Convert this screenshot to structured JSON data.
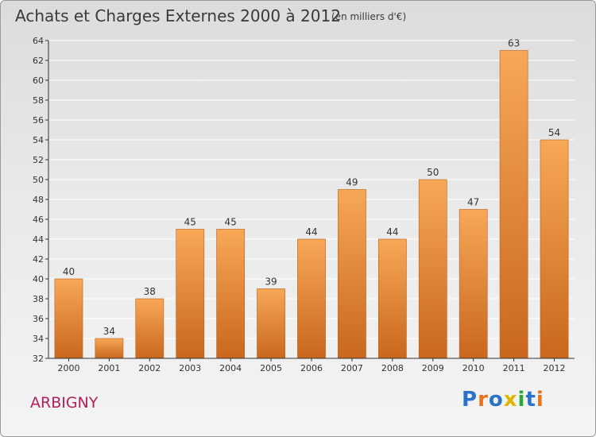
{
  "title": "Achats et Charges Externes 2000 à 2012",
  "unit_note": "(en milliers d'€)",
  "commune": "ARBIGNY",
  "logo": {
    "text": "Proxiti",
    "letters": [
      {
        "char": "P",
        "color": "#2a73c8"
      },
      {
        "char": "r",
        "color": "#e8731c"
      },
      {
        "char": "o",
        "color": "#2a73c8"
      },
      {
        "char": "x",
        "color": "#e0b400"
      },
      {
        "char": "i",
        "color": "#2aa836"
      },
      {
        "char": "t",
        "color": "#2a73c8"
      },
      {
        "char": "i",
        "color": "#e8731c"
      }
    ]
  },
  "colors": {
    "bar_top": "#f7a857",
    "bar_bottom": "#c9671d",
    "bar_edge": "#b85e1c",
    "title_text": "#3a3a3a",
    "commune_text": "#b51f5b",
    "grid": "#ffffff",
    "axis": "#333333"
  },
  "chart_data": {
    "type": "bar",
    "title": "Achats et Charges Externes 2000 à 2012",
    "categories": [
      "2000",
      "2001",
      "2002",
      "2003",
      "2004",
      "2005",
      "2006",
      "2007",
      "2008",
      "2009",
      "2010",
      "2011",
      "2012"
    ],
    "values": [
      40,
      34,
      38,
      45,
      45,
      39,
      44,
      49,
      44,
      50,
      47,
      63,
      54
    ],
    "data_labels": [
      "40",
      "34",
      "38",
      "45",
      "45",
      "39",
      "44",
      "49",
      "44",
      "50",
      "47",
      "63",
      "54"
    ],
    "ylim": [
      32,
      64
    ],
    "yticks": [
      32,
      34,
      36,
      38,
      40,
      42,
      44,
      46,
      48,
      50,
      52,
      54,
      56,
      58,
      60,
      62,
      64
    ],
    "xlabel": "",
    "ylabel": "",
    "grid": true,
    "legend": "none"
  }
}
